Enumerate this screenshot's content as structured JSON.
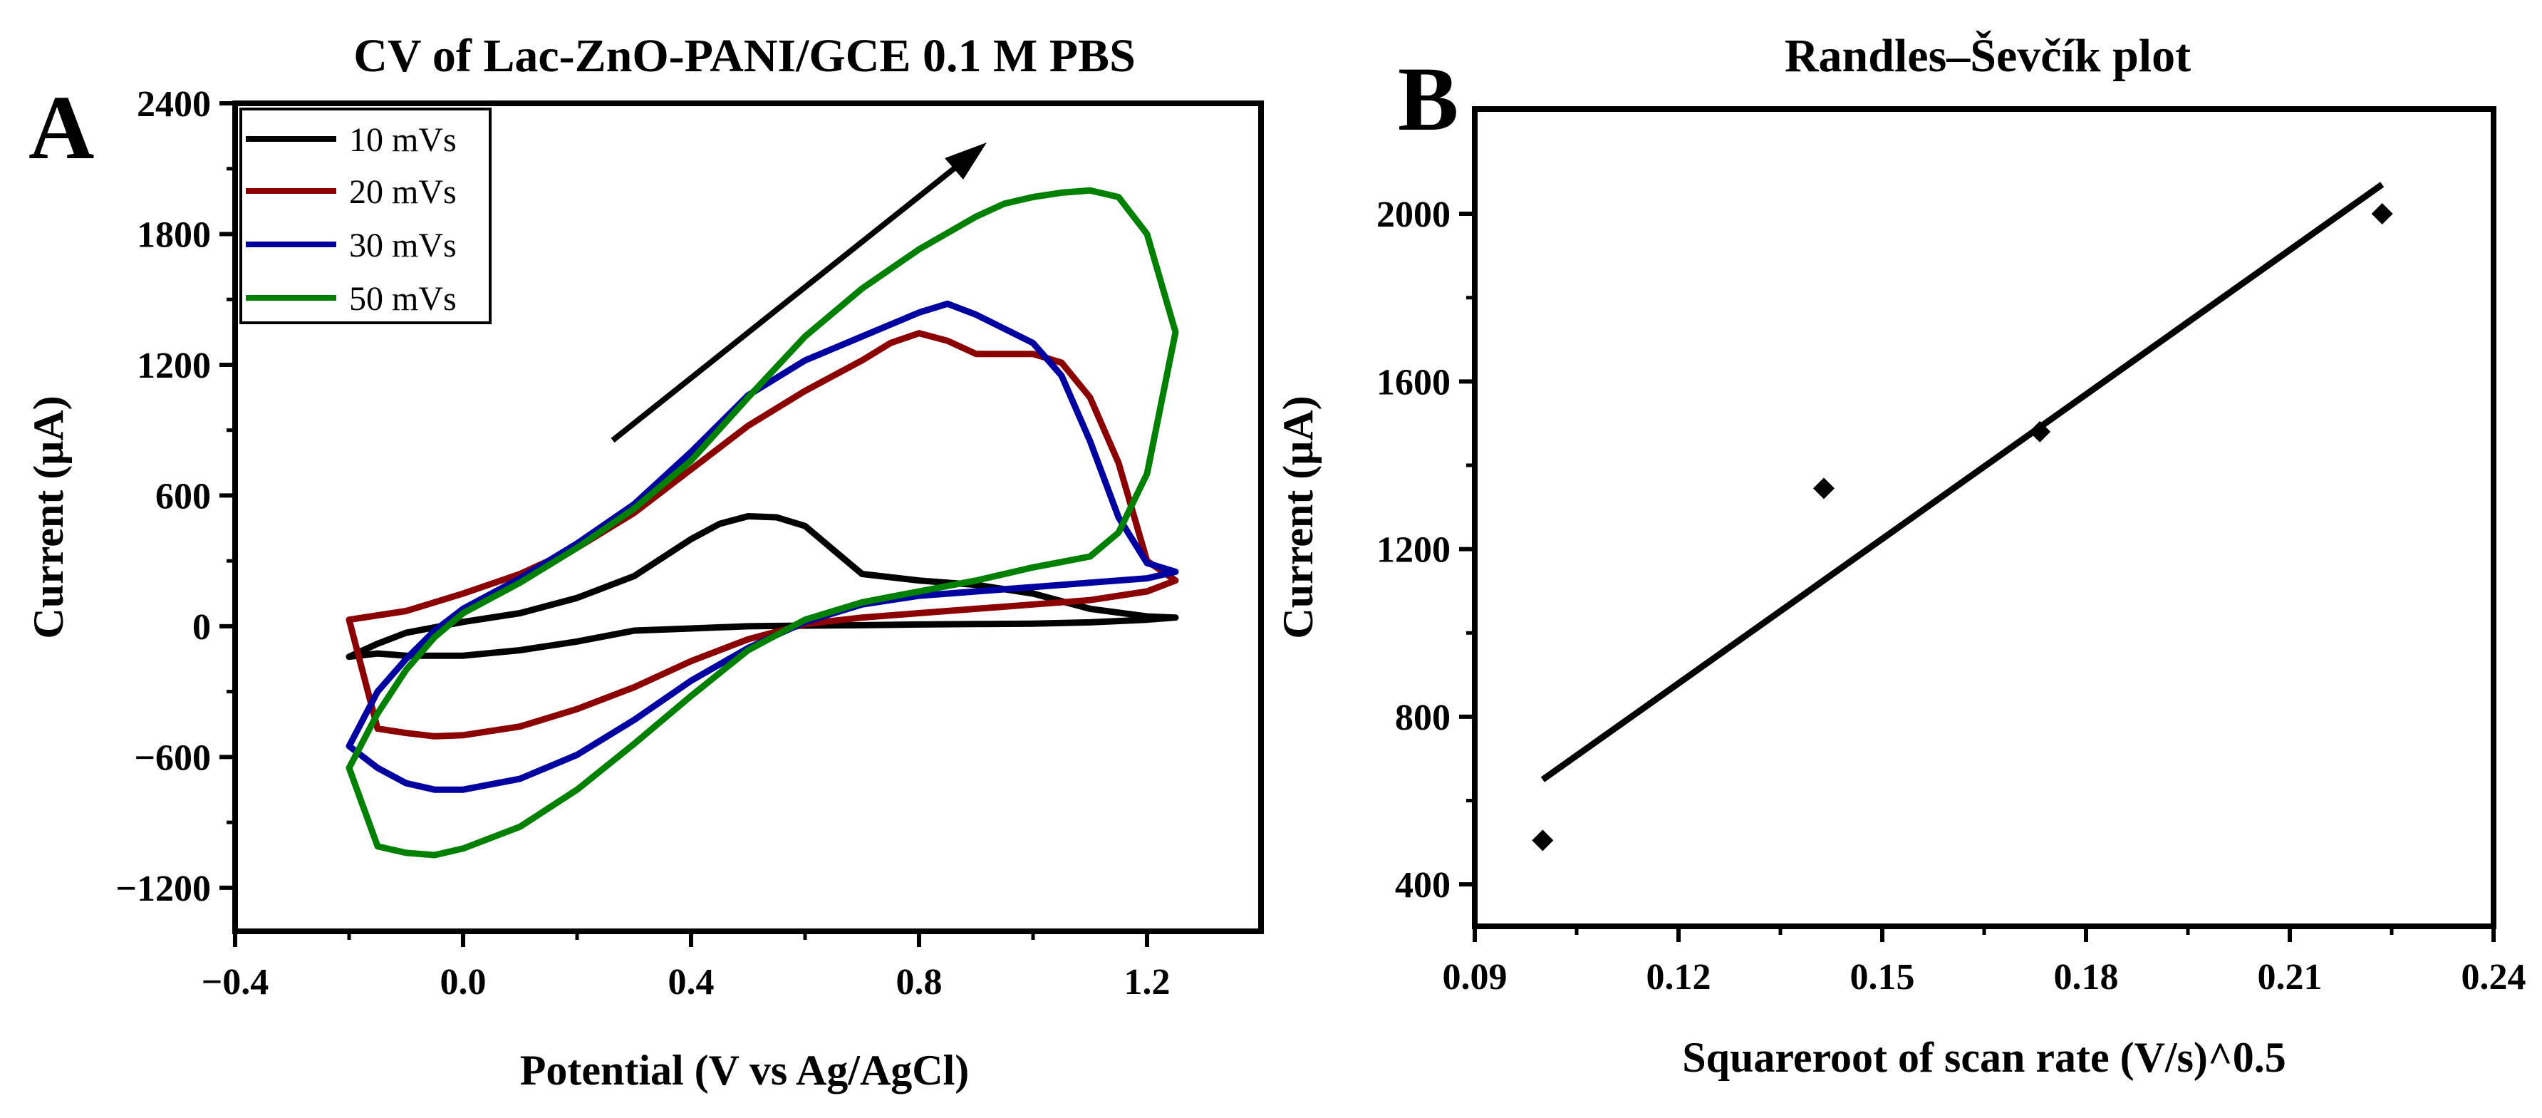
{
  "chart_data": [
    {
      "type": "line",
      "panel_label": "A",
      "title": "CV of Lac-ZnO-PANI/GCE 0.1 M PBS",
      "xlabel": "Potential (V vs Ag/AgCl)",
      "ylabel": "Current (μA)",
      "xlim": [
        -0.4,
        1.4
      ],
      "ylim": [
        -1400,
        2400
      ],
      "xticks": [
        -0.4,
        0.0,
        0.4,
        0.8,
        1.2
      ],
      "xtick_labels": [
        "−0.4",
        "0.0",
        "0.4",
        "0.8",
        "1.2"
      ],
      "yticks": [
        -1200,
        -600,
        0,
        600,
        1200,
        1800,
        2400
      ],
      "ytick_labels": [
        "−1200",
        "−600",
        "0",
        "600",
        "1200",
        "1800",
        "2400"
      ],
      "legend_position": "top-left",
      "annotation": "arrow indicating increasing scan rate",
      "series": [
        {
          "name": "10 mVs",
          "color": "#000000",
          "points": [
            [
              -0.2,
              -140
            ],
            [
              -0.15,
              -80
            ],
            [
              -0.1,
              -30
            ],
            [
              0.0,
              20
            ],
            [
              0.1,
              60
            ],
            [
              0.2,
              130
            ],
            [
              0.3,
              230
            ],
            [
              0.4,
              400
            ],
            [
              0.45,
              470
            ],
            [
              0.5,
              505
            ],
            [
              0.55,
              500
            ],
            [
              0.6,
              460
            ],
            [
              0.65,
              350
            ],
            [
              0.7,
              240
            ],
            [
              0.8,
              210
            ],
            [
              0.9,
              190
            ],
            [
              1.0,
              150
            ],
            [
              1.1,
              80
            ],
            [
              1.2,
              45
            ],
            [
              1.25,
              40
            ],
            [
              1.2,
              30
            ],
            [
              1.1,
              18
            ],
            [
              1.0,
              12
            ],
            [
              0.9,
              10
            ],
            [
              0.8,
              8
            ],
            [
              0.7,
              5
            ],
            [
              0.6,
              3
            ],
            [
              0.5,
              0
            ],
            [
              0.4,
              -10
            ],
            [
              0.3,
              -20
            ],
            [
              0.2,
              -70
            ],
            [
              0.1,
              -110
            ],
            [
              0.0,
              -135
            ],
            [
              -0.1,
              -135
            ],
            [
              -0.15,
              -125
            ]
          ]
        },
        {
          "name": "20 mVs",
          "color": "#8b0000",
          "points": [
            [
              -0.2,
              30
            ],
            [
              -0.1,
              70
            ],
            [
              0.0,
              150
            ],
            [
              0.1,
              240
            ],
            [
              0.2,
              360
            ],
            [
              0.3,
              520
            ],
            [
              0.4,
              720
            ],
            [
              0.5,
              920
            ],
            [
              0.6,
              1080
            ],
            [
              0.7,
              1220
            ],
            [
              0.75,
              1300
            ],
            [
              0.8,
              1345
            ],
            [
              0.85,
              1310
            ],
            [
              0.9,
              1250
            ],
            [
              1.0,
              1250
            ],
            [
              1.05,
              1210
            ],
            [
              1.1,
              1050
            ],
            [
              1.15,
              750
            ],
            [
              1.2,
              300
            ],
            [
              1.25,
              210
            ],
            [
              1.2,
              160
            ],
            [
              1.1,
              120
            ],
            [
              1.0,
              100
            ],
            [
              0.9,
              80
            ],
            [
              0.8,
              60
            ],
            [
              0.7,
              40
            ],
            [
              0.6,
              10
            ],
            [
              0.5,
              -60
            ],
            [
              0.4,
              -160
            ],
            [
              0.3,
              -280
            ],
            [
              0.2,
              -380
            ],
            [
              0.1,
              -460
            ],
            [
              0.0,
              -500
            ],
            [
              -0.05,
              -505
            ],
            [
              -0.1,
              -490
            ],
            [
              -0.15,
              -470
            ]
          ]
        },
        {
          "name": "30 mVs",
          "color": "#0000a0",
          "points": [
            [
              -0.2,
              -550
            ],
            [
              -0.15,
              -300
            ],
            [
              -0.1,
              -150
            ],
            [
              -0.05,
              -20
            ],
            [
              0.0,
              80
            ],
            [
              0.1,
              220
            ],
            [
              0.2,
              380
            ],
            [
              0.3,
              560
            ],
            [
              0.4,
              800
            ],
            [
              0.5,
              1060
            ],
            [
              0.6,
              1220
            ],
            [
              0.7,
              1330
            ],
            [
              0.8,
              1440
            ],
            [
              0.85,
              1480
            ],
            [
              0.9,
              1430
            ],
            [
              1.0,
              1300
            ],
            [
              1.05,
              1150
            ],
            [
              1.1,
              850
            ],
            [
              1.15,
              500
            ],
            [
              1.2,
              290
            ],
            [
              1.25,
              250
            ],
            [
              1.2,
              220
            ],
            [
              1.1,
              200
            ],
            [
              1.0,
              180
            ],
            [
              0.9,
              160
            ],
            [
              0.8,
              140
            ],
            [
              0.7,
              100
            ],
            [
              0.6,
              20
            ],
            [
              0.5,
              -100
            ],
            [
              0.4,
              -250
            ],
            [
              0.3,
              -430
            ],
            [
              0.2,
              -590
            ],
            [
              0.1,
              -700
            ],
            [
              0.0,
              -750
            ],
            [
              -0.05,
              -750
            ],
            [
              -0.1,
              -720
            ],
            [
              -0.15,
              -650
            ]
          ]
        },
        {
          "name": "50 mVs",
          "color": "#008000",
          "points": [
            [
              -0.2,
              -650
            ],
            [
              -0.15,
              -400
            ],
            [
              -0.1,
              -200
            ],
            [
              -0.05,
              -50
            ],
            [
              0.0,
              60
            ],
            [
              0.1,
              200
            ],
            [
              0.2,
              360
            ],
            [
              0.3,
              540
            ],
            [
              0.4,
              760
            ],
            [
              0.5,
              1050
            ],
            [
              0.6,
              1330
            ],
            [
              0.7,
              1550
            ],
            [
              0.8,
              1730
            ],
            [
              0.9,
              1880
            ],
            [
              0.95,
              1940
            ],
            [
              1.0,
              1970
            ],
            [
              1.05,
              1990
            ],
            [
              1.1,
              2000
            ],
            [
              1.15,
              1970
            ],
            [
              1.2,
              1800
            ],
            [
              1.25,
              1350
            ],
            [
              1.2,
              700
            ],
            [
              1.15,
              430
            ],
            [
              1.1,
              320
            ],
            [
              1.0,
              270
            ],
            [
              0.9,
              210
            ],
            [
              0.8,
              160
            ],
            [
              0.7,
              110
            ],
            [
              0.6,
              30
            ],
            [
              0.5,
              -110
            ],
            [
              0.4,
              -320
            ],
            [
              0.3,
              -540
            ],
            [
              0.2,
              -750
            ],
            [
              0.1,
              -920
            ],
            [
              0.0,
              -1020
            ],
            [
              -0.05,
              -1050
            ],
            [
              -0.1,
              -1040
            ],
            [
              -0.15,
              -1010
            ]
          ]
        }
      ]
    },
    {
      "type": "scatter",
      "panel_label": "B",
      "title": "Randles–Ševčík plot",
      "xlabel": "Squareroot of scan rate (V/s)^0.5",
      "ylabel": "Current (μA)",
      "xlim": [
        0.09,
        0.24
      ],
      "ylim": [
        300,
        2250
      ],
      "xticks": [
        0.09,
        0.12,
        0.15,
        0.18,
        0.21,
        0.24
      ],
      "xtick_labels": [
        "0.09",
        "0.12",
        "0.15",
        "0.18",
        "0.21",
        "0.24"
      ],
      "yticks": [
        400,
        800,
        1200,
        1600,
        2000
      ],
      "ytick_labels": [
        "400",
        "800",
        "1200",
        "1600",
        "2000"
      ],
      "points": [
        [
          0.1,
          505
        ],
        [
          0.1414,
          1345
        ],
        [
          0.1732,
          1480
        ],
        [
          0.2236,
          2000
        ]
      ],
      "fit_line": [
        [
          0.1,
          650
        ],
        [
          0.2236,
          2070
        ]
      ]
    }
  ]
}
